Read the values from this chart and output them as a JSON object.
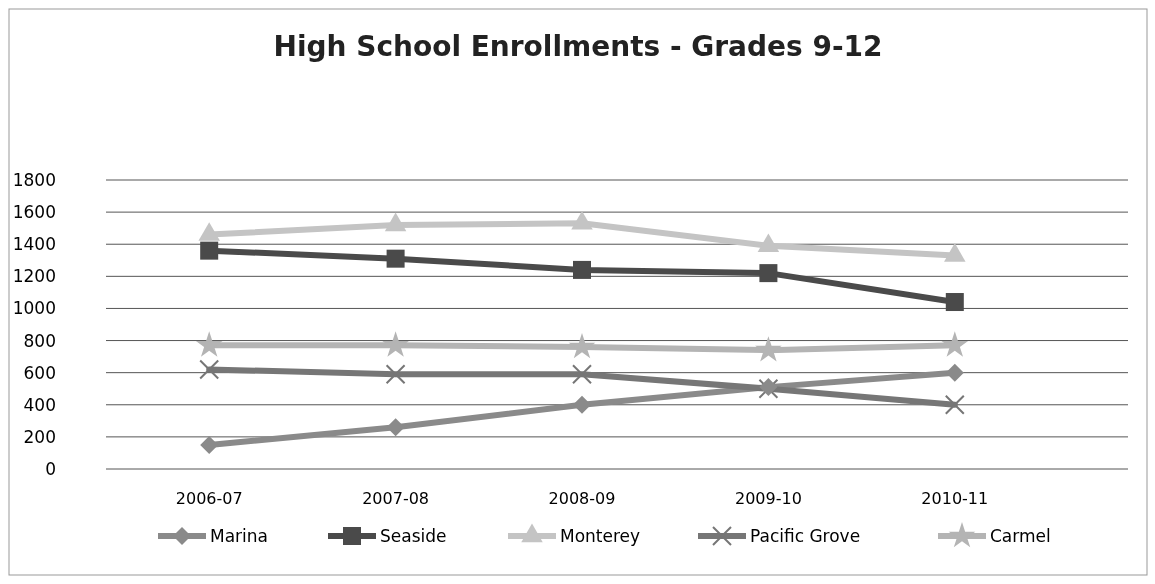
{
  "chart_data": {
    "type": "line",
    "title": "High School Enrollments - Grades 9-12",
    "categories": [
      "2006-07",
      "2007-08",
      "2008-09",
      "2009-10",
      "2010-11"
    ],
    "series": [
      {
        "name": "Marina",
        "color": "#8a8a8a",
        "marker": "diamond",
        "values": [
          150,
          260,
          400,
          510,
          600
        ]
      },
      {
        "name": "Seaside",
        "color": "#4a4a4a",
        "marker": "square",
        "values": [
          1360,
          1310,
          1240,
          1220,
          1040
        ]
      },
      {
        "name": "Monterey",
        "color": "#c4c4c4",
        "marker": "triangle",
        "values": [
          1460,
          1520,
          1530,
          1390,
          1330
        ]
      },
      {
        "name": "Pacific Grove",
        "color": "#767676",
        "marker": "cross",
        "values": [
          620,
          590,
          590,
          500,
          400
        ]
      },
      {
        "name": "Carmel",
        "color": "#b4b4b4",
        "marker": "star",
        "values": [
          770,
          770,
          760,
          740,
          770
        ]
      }
    ],
    "ylim": [
      0,
      1800
    ],
    "yticks": [
      0,
      200,
      400,
      600,
      800,
      1000,
      1200,
      1400,
      1600,
      1800
    ],
    "grid": "y",
    "legend": "bottom"
  }
}
